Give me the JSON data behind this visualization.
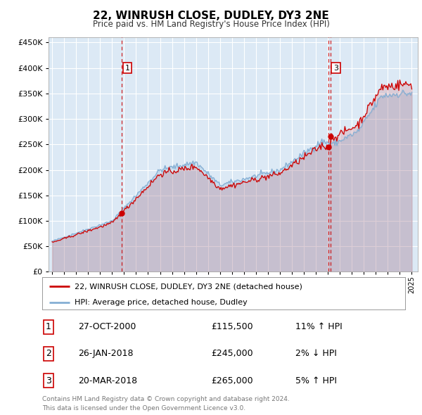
{
  "title": "22, WINRUSH CLOSE, DUDLEY, DY3 2NE",
  "subtitle": "Price paid vs. HM Land Registry's House Price Index (HPI)",
  "bg_color": "#dce9f5",
  "red_line_color": "#cc0000",
  "blue_line_color": "#85afd4",
  "dashed_line_color": "#cc0000",
  "ylim": [
    0,
    460000
  ],
  "yticks": [
    0,
    50000,
    100000,
    150000,
    200000,
    250000,
    300000,
    350000,
    400000,
    450000
  ],
  "xlim_start": 1994.7,
  "xlim_end": 2025.5,
  "legend_line1": "22, WINRUSH CLOSE, DUDLEY, DY3 2NE (detached house)",
  "legend_line2": "HPI: Average price, detached house, Dudley",
  "table_rows": [
    [
      "1",
      "27-OCT-2000",
      "£115,500",
      "11% ↑ HPI"
    ],
    [
      "2",
      "26-JAN-2018",
      "£245,000",
      "2% ↓ HPI"
    ],
    [
      "3",
      "20-MAR-2018",
      "£265,000",
      "5% ↑ HPI"
    ]
  ],
  "footer1": "Contains HM Land Registry data © Crown copyright and database right 2024.",
  "footer2": "This data is licensed under the Open Government Licence v3.0.",
  "purchase_markers": [
    {
      "label": "1",
      "x_year": 2000.82,
      "price": 115500,
      "show_in_chart": true
    },
    {
      "label": "2",
      "x_year": 2018.07,
      "price": 245000,
      "show_in_chart": false
    },
    {
      "label": "3",
      "x_year": 2018.22,
      "price": 265000,
      "show_in_chart": true
    }
  ]
}
